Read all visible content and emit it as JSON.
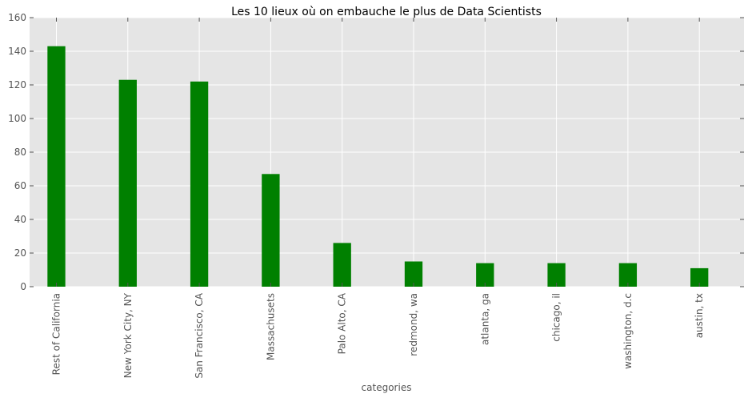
{
  "chart_data": {
    "type": "bar",
    "title": "Les 10 lieux où on embauche le plus de Data Scientists",
    "xlabel": "categories",
    "ylabel": "",
    "categories": [
      "Rest of California",
      "New York City, NY",
      "San Francisco, CA",
      "Massachusets",
      "Palo Alto, CA",
      "redmond, wa",
      "atlanta, ga",
      "chicago, il",
      "washington, d.c",
      "austin, tx"
    ],
    "values": [
      143,
      123,
      122,
      67,
      26,
      15,
      14,
      14,
      14,
      11
    ],
    "ylim": [
      0,
      160
    ],
    "yticks": [
      0,
      20,
      40,
      60,
      80,
      100,
      120,
      140,
      160
    ],
    "grid": true,
    "legend": "none",
    "colors": {
      "bar": "#008000",
      "background": "#e5e5e5",
      "grid": "#ffffff",
      "text": "#555555"
    }
  }
}
